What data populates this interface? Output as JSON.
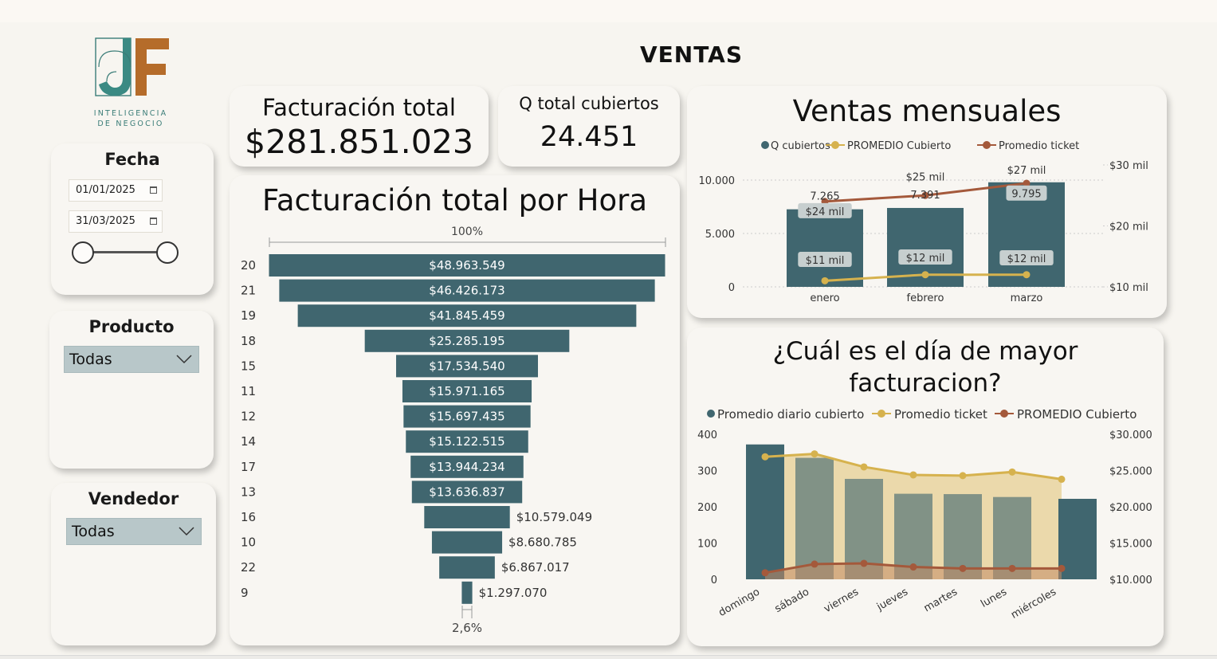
{
  "page": {
    "title": "VENTAS"
  },
  "logo": {
    "letters": "JF",
    "subtitle_line1": "INTELIGENCIA",
    "subtitle_line2": "DE NEGOCIO"
  },
  "filters": {
    "fecha": {
      "title": "Fecha",
      "start": "01/01/2025",
      "end": "31/03/2025",
      "range_selected": [
        0,
        1
      ]
    },
    "producto": {
      "title": "Producto",
      "value": "Todas"
    },
    "vendedor": {
      "title": "Vendedor",
      "value": "Todas"
    }
  },
  "kpis": {
    "facturacion": {
      "label": "Facturación total",
      "value": "$281.851.023"
    },
    "cubiertos": {
      "label": "Q total cubiertos",
      "value": "24.451"
    }
  },
  "colors": {
    "bar": "#40666f",
    "gold": "#d6b24e",
    "rust": "#a4593b",
    "area": "#e9d6a3",
    "olive": "#7e8460"
  },
  "chart_data": [
    {
      "id": "funnel",
      "type": "bar",
      "title": "Facturación total por Hora",
      "top_label": "100%",
      "bottom_label": "2,6%",
      "categories": [
        "20",
        "21",
        "19",
        "18",
        "15",
        "11",
        "12",
        "14",
        "17",
        "13",
        "16",
        "10",
        "22",
        "9"
      ],
      "values": [
        48963549,
        46426173,
        41845459,
        25285195,
        17534540,
        15971165,
        15697435,
        15122515,
        13944234,
        13636837,
        10579049,
        8680785,
        6867017,
        1297070
      ],
      "labels": [
        "$48.963.549",
        "$46.426.173",
        "$41.845.459",
        "$25.285.195",
        "$17.534.540",
        "$15.971.165",
        "$15.697.435",
        "$15.122.515",
        "$13.944.234",
        "$13.636.837",
        "$10.579.049",
        "$8.680.785",
        "$6.867.017",
        "$1.297.070"
      ]
    },
    {
      "id": "monthly",
      "type": "bar",
      "title": "Ventas mensuales",
      "legend": [
        "Q cubiertos",
        "PROMEDIO Cubierto",
        "Promedio ticket"
      ],
      "legend_position": "top",
      "categories": [
        "enero",
        "febrero",
        "marzo"
      ],
      "bars": {
        "name": "Q cubiertos",
        "values": [
          7265,
          7391,
          9795
        ],
        "labels": [
          "7.265",
          "7.391",
          "9.795"
        ]
      },
      "promedio_ticket": {
        "name": "Promedio ticket",
        "values": [
          24,
          25,
          27
        ],
        "labels": [
          "$24 mil",
          "$25 mil",
          "$27 mil"
        ]
      },
      "promedio_cubierto": {
        "name": "PROMEDIO Cubierto",
        "values": [
          11,
          12,
          12
        ],
        "labels": [
          "$11 mil",
          "$12 mil",
          "$12 mil"
        ]
      },
      "y_left": {
        "ticks": [
          0,
          5000,
          10000
        ],
        "tick_labels": [
          "0",
          "5.000",
          "10.000"
        ],
        "range": [
          0,
          10000
        ]
      },
      "y_right": {
        "ticks": [
          10,
          20,
          30
        ],
        "tick_labels": [
          "$10 mil",
          "$20 mil",
          "$30 mil"
        ],
        "range": [
          10,
          30
        ]
      }
    },
    {
      "id": "weekday",
      "type": "bar",
      "title_line1": "¿Cuál es el día de mayor",
      "title_line2": "facturacion?",
      "legend": [
        "Promedio diario cubierto",
        "Promedio ticket",
        "PROMEDIO Cubierto"
      ],
      "legend_position": "top",
      "categories": [
        "domingo",
        "sábado",
        "viernes",
        "jueves",
        "martes",
        "lunes",
        "miércoles"
      ],
      "bars": {
        "name": "Promedio diario cubierto",
        "values": [
          372,
          335,
          277,
          236,
          235,
          227,
          222
        ]
      },
      "promedio_ticket": {
        "name": "Promedio ticket",
        "values": [
          26900,
          27300,
          25500,
          24400,
          24300,
          24800,
          23800
        ]
      },
      "promedio_cubierto": {
        "name": "PROMEDIO Cubierto",
        "values": [
          10900,
          12100,
          12200,
          11700,
          11500,
          11500,
          11500
        ]
      },
      "y_left": {
        "ticks": [
          0,
          100,
          200,
          300,
          400
        ],
        "tick_labels": [
          "0",
          "100",
          "200",
          "300",
          "400"
        ],
        "range": [
          0,
          400
        ]
      },
      "y_right": {
        "ticks": [
          10000,
          15000,
          20000,
          25000,
          30000
        ],
        "tick_labels": [
          "$10.000",
          "$15.000",
          "$20.000",
          "$25.000",
          "$30.000"
        ],
        "range": [
          10000,
          30000
        ]
      }
    }
  ]
}
